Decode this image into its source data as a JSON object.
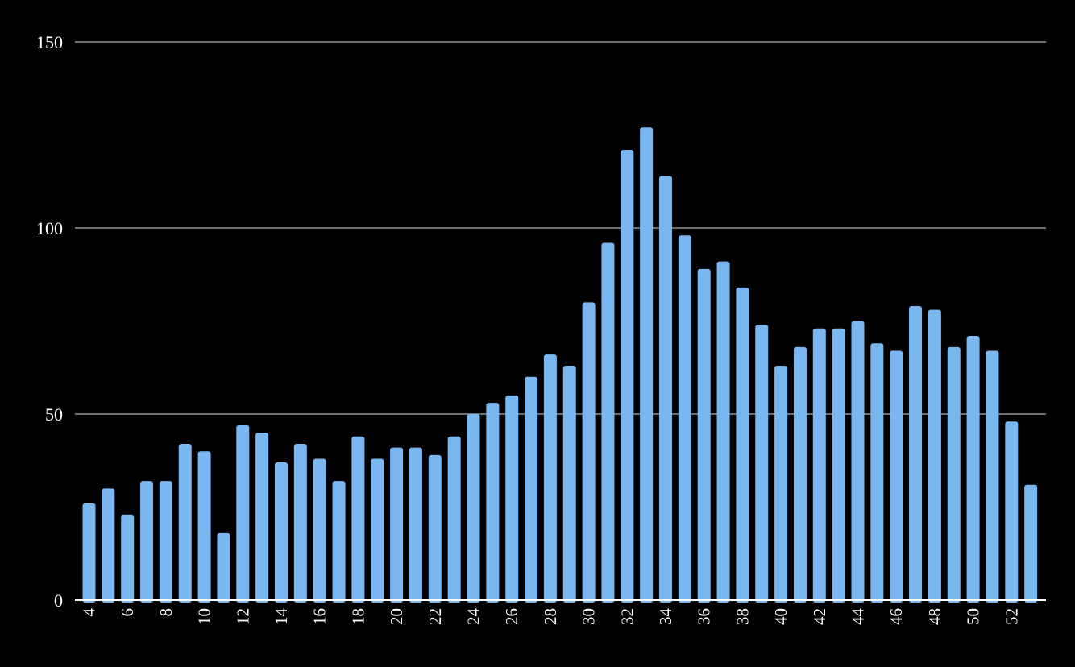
{
  "chart_data": {
    "type": "bar",
    "title": "",
    "xlabel": "",
    "ylabel": "",
    "ylim": [
      0,
      150
    ],
    "yticks": [
      "0",
      "50",
      "100",
      "150"
    ],
    "grid": "horizontal",
    "categories": [
      "4",
      "5",
      "6",
      "7",
      "8",
      "9",
      "10",
      "11",
      "12",
      "13",
      "14",
      "15",
      "16",
      "17",
      "18",
      "19",
      "20",
      "21",
      "22",
      "23",
      "24",
      "25",
      "26",
      "27",
      "28",
      "29",
      "30",
      "31",
      "32",
      "33",
      "34",
      "35",
      "36",
      "37",
      "38",
      "39",
      "40",
      "41",
      "42",
      "43",
      "44",
      "45",
      "46",
      "47",
      "48",
      "49",
      "50",
      "51",
      "52",
      "53"
    ],
    "xtick_labels": [
      "4",
      "6",
      "8",
      "10",
      "12",
      "14",
      "16",
      "18",
      "20",
      "22",
      "24",
      "26",
      "28",
      "30",
      "32",
      "34",
      "36",
      "38",
      "40",
      "42",
      "44",
      "46",
      "48",
      "50",
      "52"
    ],
    "values": [
      26,
      30,
      23,
      32,
      32,
      42,
      40,
      18,
      47,
      45,
      37,
      42,
      38,
      32,
      44,
      38,
      41,
      41,
      39,
      44,
      50,
      53,
      55,
      60,
      66,
      63,
      80,
      96,
      121,
      127,
      114,
      98,
      89,
      91,
      84,
      74,
      63,
      68,
      73,
      73,
      75,
      69,
      67,
      79,
      78,
      68,
      71,
      67,
      48,
      31
    ],
    "colors": {
      "background": "#000000",
      "bar": "#7ab6ef",
      "grid": "#6e6e6e",
      "axis": "#ffffff",
      "text": "#ffffff"
    }
  }
}
